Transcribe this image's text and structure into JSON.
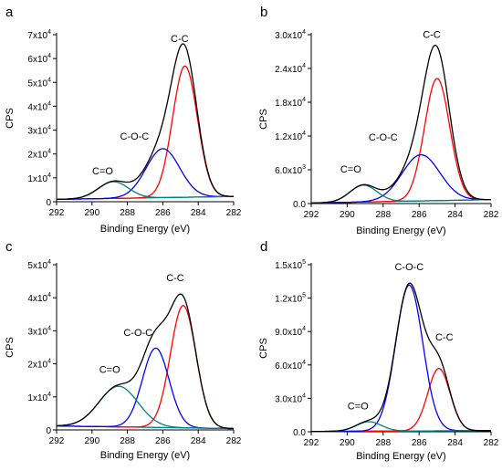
{
  "chart_data": [
    {
      "panel": "a",
      "type": "line",
      "xlabel": "Binding Energy (eV)",
      "ylabel": "CPS",
      "xlim": [
        292,
        282
      ],
      "x_ticks": [
        292,
        290,
        288,
        286,
        284,
        282
      ],
      "ylim": [
        0,
        70000
      ],
      "y_ticks": [
        {
          "value": 0,
          "mant": "0",
          "exp": ""
        },
        {
          "value": 10000,
          "mant": "1x10",
          "exp": "4"
        },
        {
          "value": 20000,
          "mant": "2x10",
          "exp": "4"
        },
        {
          "value": 30000,
          "mant": "3x10",
          "exp": "4"
        },
        {
          "value": 40000,
          "mant": "4x10",
          "exp": "4"
        },
        {
          "value": 50000,
          "mant": "5x10",
          "exp": "4"
        },
        {
          "value": 60000,
          "mant": "6x10",
          "exp": "4"
        },
        {
          "value": 70000,
          "mant": "7x10",
          "exp": "4"
        }
      ],
      "baseline": {
        "start": 1000,
        "end": 2200
      },
      "peaks": [
        {
          "label": "C-C",
          "center": 284.75,
          "amp": 55000,
          "sigma": 0.7,
          "color": "#ff0000"
        },
        {
          "label": "C-O-C",
          "center": 286.0,
          "amp": 20500,
          "sigma": 0.95,
          "color": "#0000ff"
        },
        {
          "label": "C=O",
          "center": 288.8,
          "amp": 7000,
          "sigma": 0.85,
          "color": "#008080"
        }
      ],
      "annotations": [
        {
          "text": "C-C",
          "x": 285.05,
          "y": 67000
        },
        {
          "text": "C-O-C",
          "x": 287.6,
          "y": 26000
        },
        {
          "text": "C=O",
          "x": 289.4,
          "y": 11500
        }
      ]
    },
    {
      "panel": "b",
      "type": "line",
      "xlabel": "Binding Energy (eV)",
      "ylabel": "CPS",
      "xlim": [
        292,
        282
      ],
      "x_ticks": [
        292,
        290,
        288,
        286,
        284,
        282
      ],
      "ylim": [
        0,
        30000
      ],
      "y_ticks": [
        {
          "value": 0,
          "mant": "0.0",
          "exp": ""
        },
        {
          "value": 6000,
          "mant": "6.0x10",
          "exp": "3"
        },
        {
          "value": 12000,
          "mant": "1.2x10",
          "exp": "4"
        },
        {
          "value": 18000,
          "mant": "1.8x10",
          "exp": "4"
        },
        {
          "value": 24000,
          "mant": "2.4x10",
          "exp": "4"
        },
        {
          "value": 30000,
          "mant": "3.0x10",
          "exp": "4"
        }
      ],
      "baseline": {
        "start": 100,
        "end": 700
      },
      "peaks": [
        {
          "label": "C-C",
          "center": 285.0,
          "amp": 21700,
          "sigma": 0.7,
          "color": "#ff0000"
        },
        {
          "label": "C-O-C",
          "center": 285.9,
          "amp": 8200,
          "sigma": 1.05,
          "color": "#0000ff"
        },
        {
          "label": "C=O",
          "center": 289.1,
          "amp": 3000,
          "sigma": 0.75,
          "color": "#008080"
        }
      ],
      "annotations": [
        {
          "text": "C-C",
          "x": 285.3,
          "y": 29400
        },
        {
          "text": "C-O-C",
          "x": 288.0,
          "y": 11200
        },
        {
          "text": "C=O",
          "x": 289.8,
          "y": 5500
        }
      ]
    },
    {
      "panel": "c",
      "type": "line",
      "xlabel": "Binding Energy (eV)",
      "ylabel": "CPS",
      "xlim": [
        292,
        282
      ],
      "x_ticks": [
        292,
        290,
        288,
        286,
        284,
        282
      ],
      "ylim": [
        0,
        50000
      ],
      "y_ticks": [
        {
          "value": 0,
          "mant": "0",
          "exp": ""
        },
        {
          "value": 10000,
          "mant": "1x10",
          "exp": "4"
        },
        {
          "value": 20000,
          "mant": "2x10",
          "exp": "4"
        },
        {
          "value": 30000,
          "mant": "3x10",
          "exp": "4"
        },
        {
          "value": 40000,
          "mant": "4x10",
          "exp": "4"
        },
        {
          "value": 50000,
          "mant": "5x10",
          "exp": "4"
        }
      ],
      "baseline": {
        "start": 1200,
        "end": 400
      },
      "peaks": [
        {
          "label": "C-C",
          "center": 284.85,
          "amp": 37000,
          "sigma": 0.72,
          "color": "#ff0000"
        },
        {
          "label": "C-O-C",
          "center": 286.4,
          "amp": 24000,
          "sigma": 0.75,
          "color": "#0000ff"
        },
        {
          "label": "C=O",
          "center": 288.5,
          "amp": 12300,
          "sigma": 1.1,
          "color": "#008080"
        }
      ],
      "annotations": [
        {
          "text": "C-C",
          "x": 285.3,
          "y": 45000
        },
        {
          "text": "C-O-C",
          "x": 287.4,
          "y": 28500
        },
        {
          "text": "C=O",
          "x": 289.0,
          "y": 17300
        }
      ]
    },
    {
      "panel": "d",
      "type": "line",
      "xlabel": "Binding Energy (eV)",
      "ylabel": "CPS",
      "xlim": [
        292,
        282
      ],
      "x_ticks": [
        292,
        290,
        288,
        286,
        284,
        282
      ],
      "ylim": [
        0,
        150000
      ],
      "y_ticks": [
        {
          "value": 0,
          "mant": "0.0",
          "exp": ""
        },
        {
          "value": 30000,
          "mant": "3.0x10",
          "exp": "4"
        },
        {
          "value": 60000,
          "mant": "6.0x10",
          "exp": "4"
        },
        {
          "value": 90000,
          "mant": "9.0x10",
          "exp": "4"
        },
        {
          "value": 120000,
          "mant": "1.2x10",
          "exp": "5"
        },
        {
          "value": 150000,
          "mant": "1.5x10",
          "exp": "5"
        }
      ],
      "baseline": {
        "start": 300,
        "end": 1000
      },
      "peaks": [
        {
          "label": "C-C",
          "center": 284.9,
          "amp": 56000,
          "sigma": 0.62,
          "color": "#ff0000"
        },
        {
          "label": "C-O-C",
          "center": 286.55,
          "amp": 131000,
          "sigma": 0.75,
          "color": "#0000ff"
        },
        {
          "label": "C=O",
          "center": 288.8,
          "amp": 8500,
          "sigma": 0.7,
          "color": "#008080"
        }
      ],
      "annotations": [
        {
          "text": "C-O-C",
          "x": 286.55,
          "y": 145000
        },
        {
          "text": "C-C",
          "x": 284.6,
          "y": 82000
        },
        {
          "text": "C=O",
          "x": 289.4,
          "y": 20000
        }
      ]
    }
  ]
}
